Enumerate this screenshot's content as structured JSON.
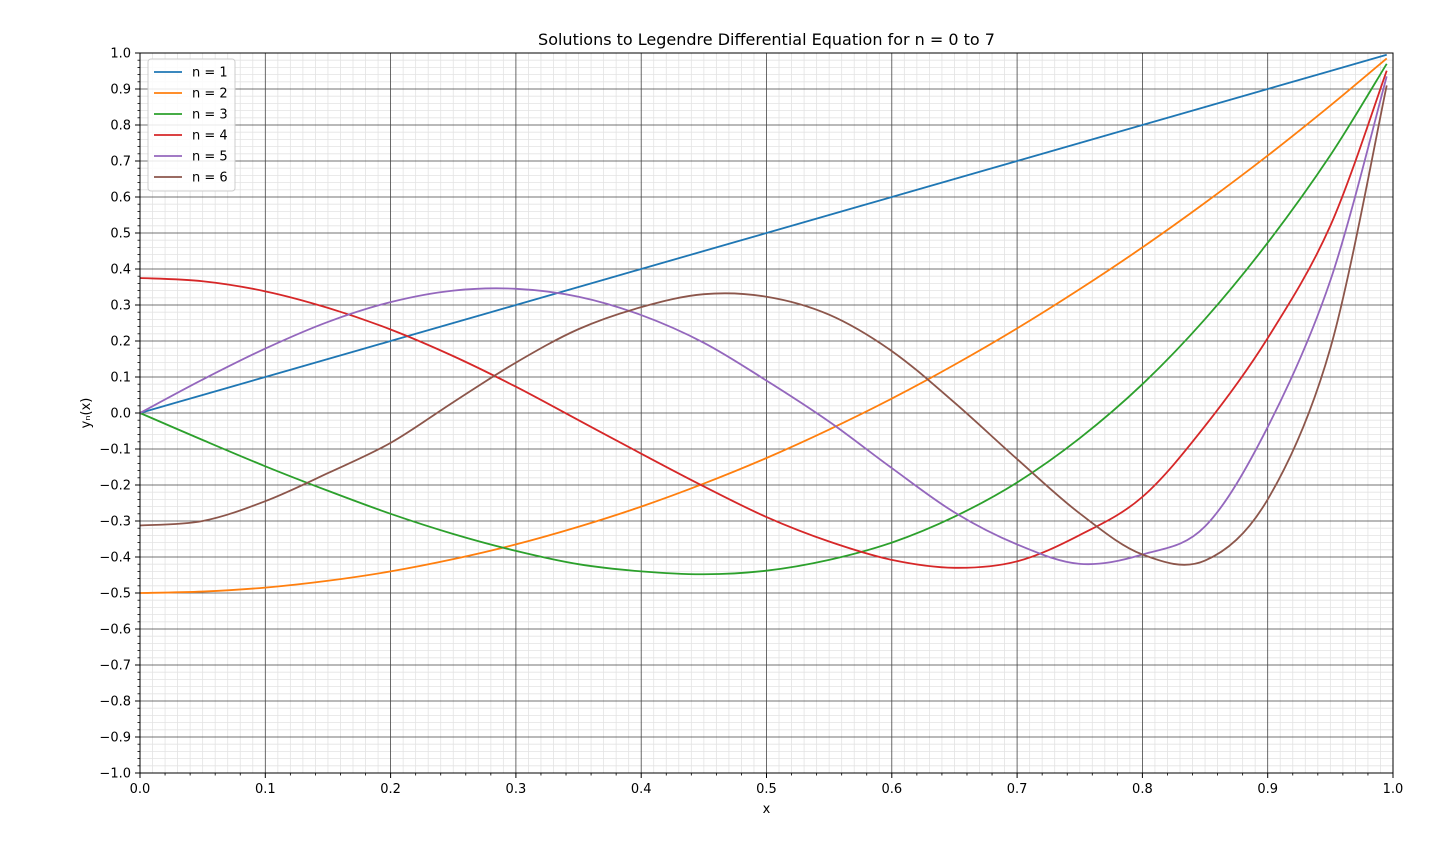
{
  "chart_data": {
    "type": "line",
    "title": "Solutions to Legendre Differential Equation for n = 0 to 7",
    "xlabel": "x",
    "ylabel": "yₙ(x)",
    "xlim": [
      0.0,
      1.0
    ],
    "ylim": [
      -1.0,
      1.0
    ],
    "x_ticks": [
      "0.0",
      "0.1",
      "0.2",
      "0.3",
      "0.4",
      "0.5",
      "0.6",
      "0.7",
      "0.8",
      "0.9",
      "1.0"
    ],
    "y_ticks": [
      "1.0",
      "0.9",
      "0.8",
      "0.7",
      "0.6",
      "0.5",
      "0.4",
      "0.3",
      "0.2",
      "0.1",
      "0.0",
      "−0.1",
      "−0.2",
      "−0.3",
      "−0.4",
      "−0.5",
      "−0.6",
      "−0.7",
      "−0.8",
      "−0.9",
      "−1.0"
    ],
    "grid": true,
    "minor_grid": true,
    "legend_position": "top-left",
    "x": [
      0.0,
      0.05,
      0.1,
      0.15,
      0.2,
      0.25,
      0.3,
      0.35,
      0.4,
      0.45,
      0.5,
      0.55,
      0.6,
      0.65,
      0.7,
      0.75,
      0.8,
      0.85,
      0.9,
      0.95,
      0.995
    ],
    "series": [
      {
        "name": "n = 1",
        "color": "#1f77b4",
        "values": [
          0.0,
          0.05,
          0.1,
          0.15,
          0.2,
          0.25,
          0.3,
          0.35,
          0.4,
          0.45,
          0.5,
          0.55,
          0.6,
          0.65,
          0.7,
          0.75,
          0.8,
          0.85,
          0.9,
          0.95,
          0.995
        ]
      },
      {
        "name": "n = 2",
        "color": "#ff7f0e",
        "values": [
          -0.5,
          -0.496,
          -0.485,
          -0.466,
          -0.44,
          -0.406,
          -0.365,
          -0.316,
          -0.26,
          -0.196,
          -0.125,
          -0.046,
          0.04,
          0.134,
          0.235,
          0.344,
          0.46,
          0.584,
          0.715,
          0.854,
          0.985
        ]
      },
      {
        "name": "n = 3",
        "color": "#2ca02c",
        "values": [
          0.0,
          -0.075,
          -0.148,
          -0.216,
          -0.28,
          -0.336,
          -0.383,
          -0.42,
          -0.44,
          -0.448,
          -0.438,
          -0.408,
          -0.36,
          -0.288,
          -0.193,
          -0.07,
          0.08,
          0.261,
          0.473,
          0.716,
          0.97
        ]
      },
      {
        "name": "n = 4",
        "color": "#d62728",
        "values": [
          0.375,
          0.366,
          0.338,
          0.292,
          0.232,
          0.158,
          0.073,
          -0.02,
          -0.113,
          -0.204,
          -0.289,
          -0.357,
          -0.408,
          -0.43,
          -0.412,
          -0.339,
          -0.233,
          -0.036,
          0.208,
          0.52,
          0.951
        ]
      },
      {
        "name": "n = 5",
        "color": "#9467bd",
        "values": [
          0.0,
          0.093,
          0.179,
          0.253,
          0.308,
          0.34,
          0.345,
          0.323,
          0.272,
          0.195,
          0.09,
          -0.024,
          -0.153,
          -0.276,
          -0.365,
          -0.419,
          -0.393,
          -0.315,
          -0.039,
          0.368,
          0.935
        ]
      },
      {
        "name": "n = 6",
        "color": "#8c564b",
        "values": [
          -0.3125,
          -0.3,
          -0.245,
          -0.167,
          -0.083,
          0.03,
          0.14,
          0.233,
          0.294,
          0.33,
          0.323,
          0.273,
          0.172,
          0.029,
          -0.128,
          -0.279,
          -0.393,
          -0.41,
          -0.24,
          0.18,
          0.91
        ]
      }
    ]
  }
}
